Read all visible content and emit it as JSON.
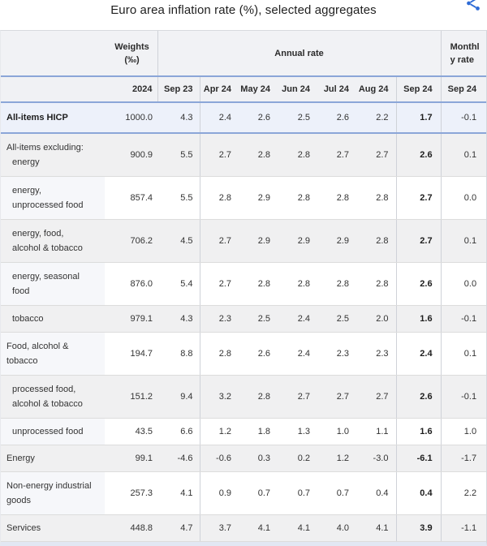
{
  "colors": {
    "separator_blue": "#8ba6d8",
    "share_icon_blue": "#2e6bd6",
    "highlight_row_bg": "#edf1fa",
    "zebra_gray": "#f0f0f1"
  },
  "chart_data": {
    "type": "table",
    "title": "Euro area inflation rate (%), selected aggregates",
    "weights_header": "Weights (‰)",
    "year_header": "2024",
    "column_groups": [
      {
        "label": "Annual rate",
        "span": 7
      },
      {
        "label": "Monthly rate",
        "span": 1
      }
    ],
    "month_headers": [
      "Sep 23",
      "Apr 24",
      "May 24",
      "Jun 24",
      "Jul 24",
      "Aug 24",
      "Sep 24",
      "Sep 24"
    ],
    "rows": [
      {
        "lines": [
          "All-items HICP"
        ],
        "indents": [
          0
        ],
        "bold": true,
        "weight": "1000.0",
        "values": [
          "4.3",
          "2.4",
          "2.6",
          "2.5",
          "2.6",
          "2.2",
          "1.7",
          "-0.1"
        ]
      },
      {
        "lines": [
          "All-items excluding:",
          "energy"
        ],
        "indents": [
          0,
          1
        ],
        "bold": false,
        "weight": "900.9",
        "values": [
          "5.5",
          "2.7",
          "2.8",
          "2.8",
          "2.7",
          "2.7",
          "2.6",
          "0.1"
        ]
      },
      {
        "lines": [
          "energy,",
          "unprocessed food"
        ],
        "indents": [
          1,
          1
        ],
        "bold": false,
        "weight": "857.4",
        "values": [
          "5.5",
          "2.8",
          "2.9",
          "2.8",
          "2.8",
          "2.8",
          "2.7",
          "0.0"
        ]
      },
      {
        "lines": [
          "energy, food,",
          "alcohol & tobacco"
        ],
        "indents": [
          1,
          1
        ],
        "bold": false,
        "weight": "706.2",
        "values": [
          "4.5",
          "2.7",
          "2.9",
          "2.9",
          "2.9",
          "2.8",
          "2.7",
          "0.1"
        ]
      },
      {
        "lines": [
          "energy, seasonal",
          "food"
        ],
        "indents": [
          1,
          1
        ],
        "bold": false,
        "weight": "876.0",
        "values": [
          "5.4",
          "2.7",
          "2.8",
          "2.8",
          "2.8",
          "2.8",
          "2.6",
          "0.0"
        ]
      },
      {
        "lines": [
          "tobacco"
        ],
        "indents": [
          1
        ],
        "bold": false,
        "weight": "979.1",
        "values": [
          "4.3",
          "2.3",
          "2.5",
          "2.4",
          "2.5",
          "2.0",
          "1.6",
          "-0.1"
        ]
      },
      {
        "lines": [
          "Food, alcohol &",
          "tobacco"
        ],
        "indents": [
          0,
          0
        ],
        "bold": false,
        "weight": "194.7",
        "values": [
          "8.8",
          "2.8",
          "2.6",
          "2.4",
          "2.3",
          "2.3",
          "2.4",
          "0.1"
        ]
      },
      {
        "lines": [
          "processed food,",
          "alcohol & tobacco"
        ],
        "indents": [
          1,
          1
        ],
        "bold": false,
        "weight": "151.2",
        "values": [
          "9.4",
          "3.2",
          "2.8",
          "2.7",
          "2.7",
          "2.7",
          "2.6",
          "-0.1"
        ]
      },
      {
        "lines": [
          "unprocessed food"
        ],
        "indents": [
          1
        ],
        "bold": false,
        "weight": "43.5",
        "values": [
          "6.6",
          "1.2",
          "1.8",
          "1.3",
          "1.0",
          "1.1",
          "1.6",
          "1.0"
        ]
      },
      {
        "lines": [
          "Energy"
        ],
        "indents": [
          0
        ],
        "bold": false,
        "weight": "99.1",
        "values": [
          "-4.6",
          "-0.6",
          "0.3",
          "0.2",
          "1.2",
          "-3.0",
          "-6.1",
          "-1.7"
        ]
      },
      {
        "lines": [
          "Non-energy industrial",
          "goods"
        ],
        "indents": [
          0,
          0
        ],
        "bold": false,
        "weight": "257.3",
        "values": [
          "4.1",
          "0.9",
          "0.7",
          "0.7",
          "0.7",
          "0.4",
          "0.4",
          "2.2"
        ]
      },
      {
        "lines": [
          "Services"
        ],
        "indents": [
          0
        ],
        "bold": false,
        "weight": "448.8",
        "values": [
          "4.7",
          "3.7",
          "4.1",
          "4.1",
          "4.0",
          "4.1",
          "3.9",
          "-1.1"
        ]
      }
    ]
  }
}
